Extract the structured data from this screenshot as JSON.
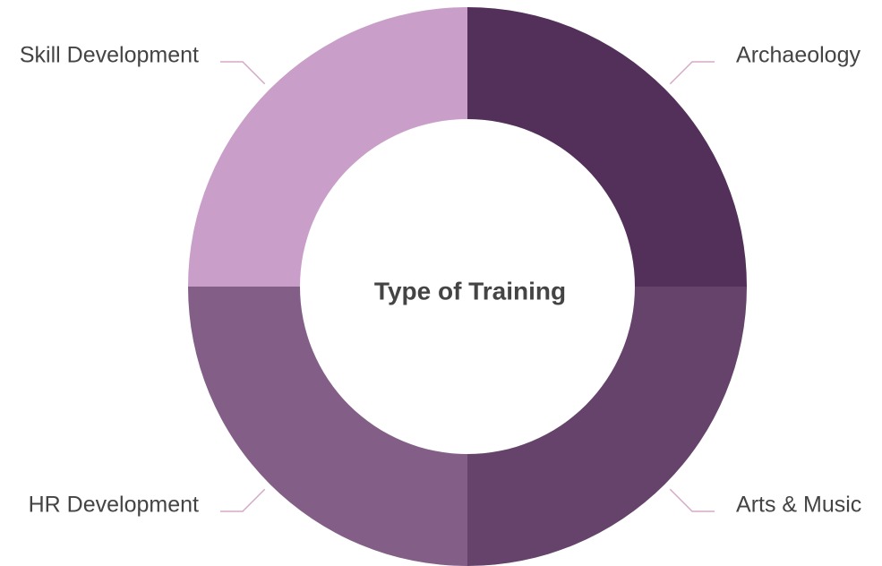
{
  "chart_data": {
    "type": "donut",
    "title": "Type of Training",
    "categories": [
      "Archaeology",
      "Arts & Music",
      "HR Development",
      "Skill Development"
    ],
    "values": [
      25,
      25,
      25,
      25
    ],
    "colors": [
      "#52305a",
      "#65436b",
      "#835f88",
      "#c99fc9"
    ]
  }
}
